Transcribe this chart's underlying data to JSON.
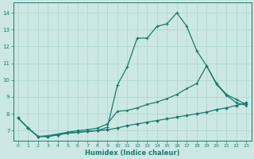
{
  "xlabel": "Humidex (Indice chaleur)",
  "bg_color": "#cce8e4",
  "line_color": "#1a7a6e",
  "grid_color": "#aad4ce",
  "xlim": [
    -0.5,
    23.5
  ],
  "ylim": [
    6.4,
    14.6
  ],
  "xticks": [
    0,
    1,
    2,
    3,
    4,
    5,
    6,
    7,
    8,
    9,
    10,
    11,
    12,
    13,
    14,
    15,
    16,
    17,
    18,
    19,
    20,
    21,
    22,
    23
  ],
  "yticks": [
    7,
    8,
    9,
    10,
    11,
    12,
    13,
    14
  ],
  "line1_x": [
    0,
    1,
    2,
    3,
    4,
    5,
    6,
    7,
    8,
    9,
    10,
    11,
    12,
    13,
    14,
    15,
    16,
    17,
    18,
    19,
    20,
    21,
    22,
    23
  ],
  "line1_y": [
    7.75,
    7.15,
    6.65,
    6.65,
    6.75,
    6.85,
    6.9,
    6.95,
    7.0,
    7.05,
    7.15,
    7.3,
    7.4,
    7.5,
    7.6,
    7.7,
    7.8,
    7.9,
    8.0,
    8.1,
    8.25,
    8.35,
    8.5,
    8.65
  ],
  "line2_x": [
    0,
    1,
    2,
    3,
    4,
    5,
    6,
    7,
    8,
    9,
    10,
    11,
    12,
    13,
    14,
    15,
    16,
    17,
    18,
    19,
    20,
    21,
    22,
    23
  ],
  "line2_y": [
    7.75,
    7.15,
    6.65,
    6.65,
    6.75,
    6.85,
    6.9,
    6.95,
    7.0,
    7.2,
    9.7,
    10.8,
    12.5,
    12.5,
    13.2,
    13.35,
    14.0,
    13.2,
    11.75,
    10.85,
    9.8,
    9.15,
    8.85,
    8.55
  ],
  "line3_x": [
    0,
    1,
    2,
    3,
    4,
    5,
    6,
    7,
    8,
    9,
    10,
    11,
    12,
    13,
    14,
    15,
    16,
    17,
    18,
    19,
    20,
    21,
    22,
    23
  ],
  "line3_y": [
    7.75,
    7.15,
    6.65,
    6.7,
    6.8,
    6.9,
    7.0,
    7.05,
    7.15,
    7.4,
    8.15,
    8.2,
    8.35,
    8.55,
    8.7,
    8.9,
    9.15,
    9.5,
    9.8,
    10.85,
    9.75,
    9.1,
    8.65,
    8.5
  ]
}
